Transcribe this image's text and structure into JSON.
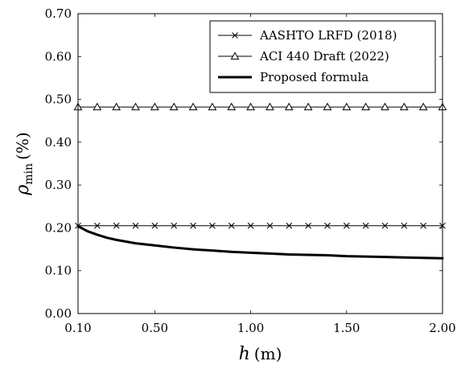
{
  "chart_data": {
    "type": "line",
    "xlabel": {
      "symbol": "h",
      "unit": "(m)"
    },
    "ylabel": {
      "symbol": "ρ",
      "subscript": "min",
      "unit": "(%)"
    },
    "xlim": [
      0.1,
      2.0
    ],
    "ylim": [
      0.0,
      0.7
    ],
    "x_ticks": [
      {
        "value": 0.1,
        "label": "0.10"
      },
      {
        "value": 0.5,
        "label": "0.50"
      },
      {
        "value": 1.0,
        "label": "1.00"
      },
      {
        "value": 1.5,
        "label": "1.50"
      },
      {
        "value": 2.0,
        "label": "2.00"
      }
    ],
    "y_ticks": [
      {
        "value": 0.0,
        "label": "0.00"
      },
      {
        "value": 0.1,
        "label": "0.10"
      },
      {
        "value": 0.2,
        "label": "0.20"
      },
      {
        "value": 0.3,
        "label": "0.30"
      },
      {
        "value": 0.4,
        "label": "0.40"
      },
      {
        "value": 0.5,
        "label": "0.50"
      },
      {
        "value": 0.6,
        "label": "0.60"
      },
      {
        "value": 0.7,
        "label": "0.70"
      }
    ],
    "grid": false,
    "legend_position": "top-right",
    "series": [
      {
        "name": "AASHTO LRFD (2018)",
        "marker": "cross",
        "line_style": "thin",
        "color": "#000000",
        "x": [
          0.1,
          0.2,
          0.3,
          0.4,
          0.5,
          0.6,
          0.7,
          0.8,
          0.9,
          1.0,
          1.1,
          1.2,
          1.3,
          1.4,
          1.5,
          1.6,
          1.7,
          1.8,
          1.9,
          2.0
        ],
        "y": [
          0.205,
          0.205,
          0.205,
          0.205,
          0.205,
          0.205,
          0.205,
          0.205,
          0.205,
          0.205,
          0.205,
          0.205,
          0.205,
          0.205,
          0.205,
          0.205,
          0.205,
          0.205,
          0.205,
          0.205
        ]
      },
      {
        "name": "ACI 440 Draft (2022)",
        "marker": "triangle",
        "line_style": "thin",
        "color": "#000000",
        "x": [
          0.1,
          0.2,
          0.3,
          0.4,
          0.5,
          0.6,
          0.7,
          0.8,
          0.9,
          1.0,
          1.1,
          1.2,
          1.3,
          1.4,
          1.5,
          1.6,
          1.7,
          1.8,
          1.9,
          2.0
        ],
        "y": [
          0.482,
          0.482,
          0.482,
          0.482,
          0.482,
          0.482,
          0.482,
          0.482,
          0.482,
          0.482,
          0.482,
          0.482,
          0.482,
          0.482,
          0.482,
          0.482,
          0.482,
          0.482,
          0.482,
          0.482
        ]
      },
      {
        "name": "Proposed formula",
        "marker": "none",
        "line_style": "thick",
        "color": "#000000",
        "x": [
          0.1,
          0.15,
          0.2,
          0.25,
          0.3,
          0.4,
          0.5,
          0.6,
          0.7,
          0.8,
          0.9,
          1.0,
          1.1,
          1.2,
          1.3,
          1.4,
          1.5,
          1.6,
          1.7,
          1.8,
          1.9,
          2.0
        ],
        "y": [
          0.204,
          0.192,
          0.184,
          0.177,
          0.172,
          0.164,
          0.159,
          0.154,
          0.15,
          0.147,
          0.144,
          0.142,
          0.14,
          0.138,
          0.137,
          0.136,
          0.134,
          0.133,
          0.132,
          0.131,
          0.13,
          0.129
        ]
      }
    ]
  }
}
